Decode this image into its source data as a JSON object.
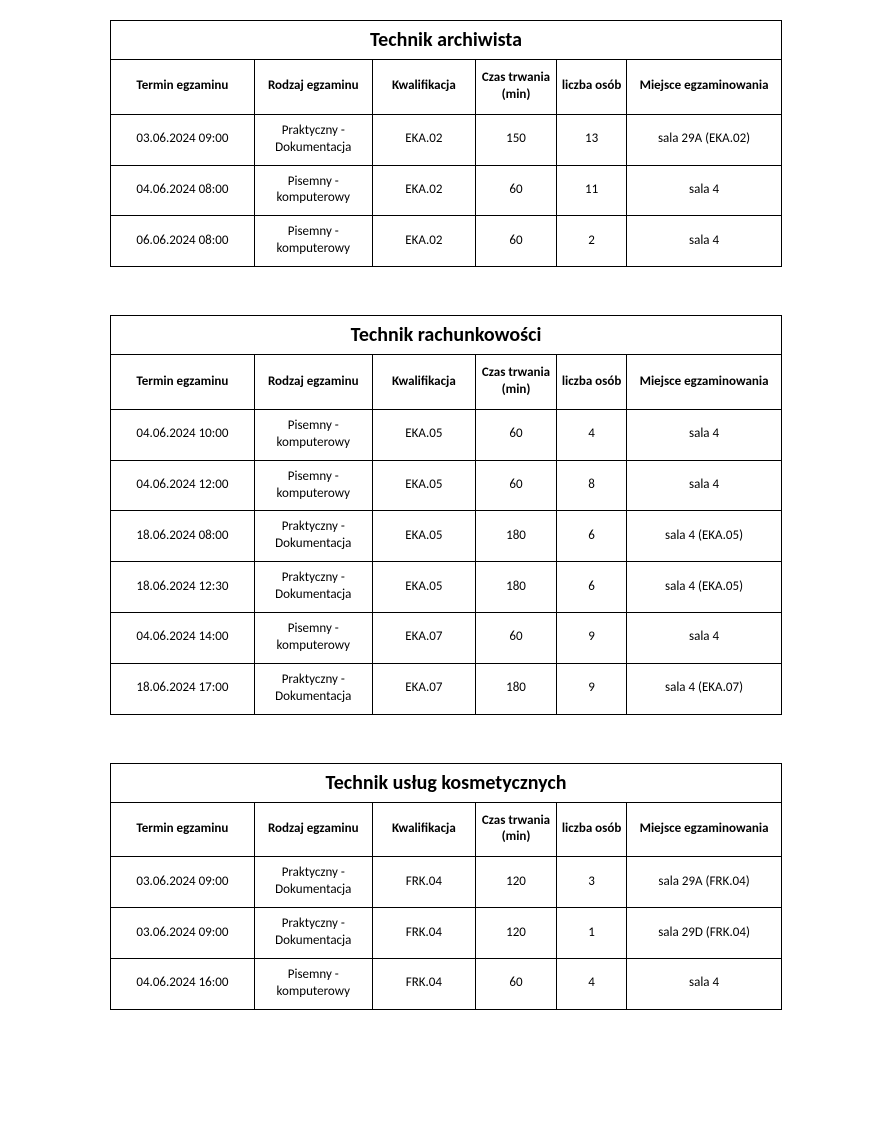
{
  "columns": [
    "Termin egzaminu",
    "Rodzaj egzaminu",
    "Kwalifikacja",
    "Czas trwania (min)",
    "liczba osób",
    "Miejsce egzaminowania"
  ],
  "col_classes": [
    "col-termin",
    "col-rodzaj",
    "col-kwal",
    "col-czas",
    "col-liczba",
    "col-miejsce"
  ],
  "sections": [
    {
      "title": "Technik archiwista",
      "rows": [
        [
          "03.06.2024 09:00",
          "Praktyczny - Dokumentacja",
          "EKA.02",
          "150",
          "13",
          "sala 29A (EKA.02)"
        ],
        [
          "04.06.2024 08:00",
          "Pisemny - komputerowy",
          "EKA.02",
          "60",
          "11",
          "sala 4"
        ],
        [
          "06.06.2024 08:00",
          "Pisemny - komputerowy",
          "EKA.02",
          "60",
          "2",
          "sala 4"
        ]
      ]
    },
    {
      "title": "Technik rachunkowości",
      "rows": [
        [
          "04.06.2024 10:00",
          "Pisemny - komputerowy",
          "EKA.05",
          "60",
          "4",
          "sala 4"
        ],
        [
          "04.06.2024 12:00",
          "Pisemny - komputerowy",
          "EKA.05",
          "60",
          "8",
          "sala 4"
        ],
        [
          "18.06.2024 08:00",
          "Praktyczny - Dokumentacja",
          "EKA.05",
          "180",
          "6",
          "sala 4 (EKA.05)"
        ],
        [
          "18.06.2024 12:30",
          "Praktyczny - Dokumentacja",
          "EKA.05",
          "180",
          "6",
          "sala 4 (EKA.05)"
        ],
        [
          "04.06.2024 14:00",
          "Pisemny - komputerowy",
          "EKA.07",
          "60",
          "9",
          "sala 4"
        ],
        [
          "18.06.2024 17:00",
          "Praktyczny - Dokumentacja",
          "EKA.07",
          "180",
          "9",
          "sala 4 (EKA.07)"
        ]
      ]
    },
    {
      "title": "Technik usług kosmetycznych",
      "rows": [
        [
          "03.06.2024 09:00",
          "Praktyczny - Dokumentacja",
          "FRK.04",
          "120",
          "3",
          "sala 29A (FRK.04)"
        ],
        [
          "03.06.2024 09:00",
          "Praktyczny - Dokumentacja",
          "FRK.04",
          "120",
          "1",
          "sala 29D (FRK.04)"
        ],
        [
          "04.06.2024 16:00",
          "Pisemny - komputerowy",
          "FRK.04",
          "60",
          "4",
          "sala 4"
        ]
      ]
    }
  ],
  "styling": {
    "border_color": "#000000",
    "background_color": "#ffffff",
    "title_fontsize": 20,
    "header_fontsize": 13,
    "cell_fontsize": 13,
    "font_family": "Calibri"
  }
}
